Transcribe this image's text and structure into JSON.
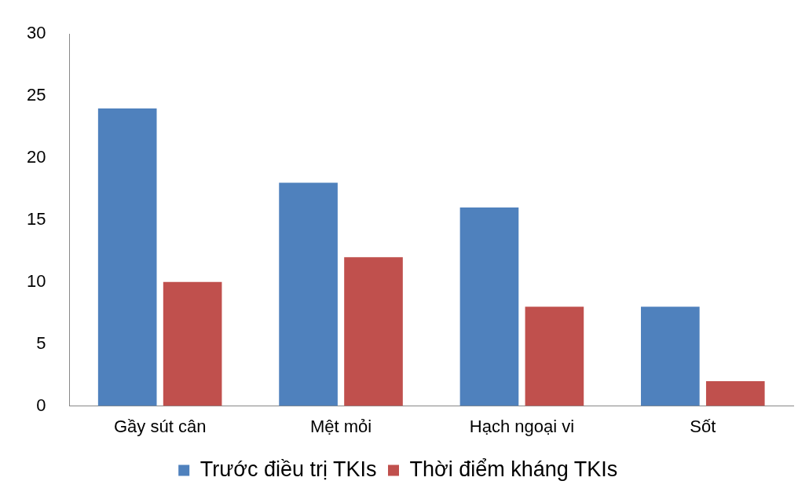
{
  "chart_data": {
    "type": "bar",
    "categories": [
      "Gầy sút cân",
      "Mệt mỏi",
      "Hạch ngoại vi",
      "Sốt"
    ],
    "series": [
      {
        "name": "Trước điều trị TKIs",
        "color": "#4f81bd",
        "values": [
          24,
          18,
          16,
          8
        ]
      },
      {
        "name": "Thời điểm kháng TKIs",
        "color": "#c0504d",
        "values": [
          10,
          12,
          8,
          2
        ]
      }
    ],
    "ylim": [
      0,
      30
    ],
    "yticks": [
      0,
      5,
      10,
      15,
      20,
      25,
      30
    ],
    "grid": false,
    "legend": "bottom"
  }
}
